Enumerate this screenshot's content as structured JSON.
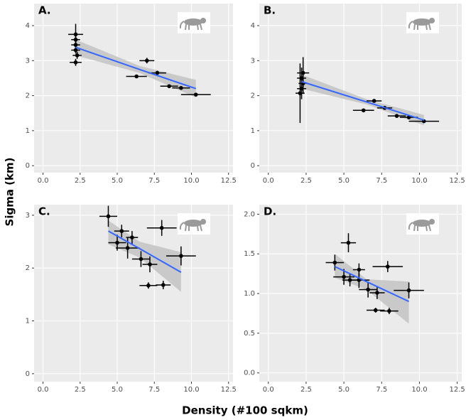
{
  "ylabel": "Sigma (km)",
  "xlabel": "Density (#100 sqkm)",
  "chart_data": [
    {
      "type": "scatter",
      "label": "A.",
      "x": [
        2.2,
        2.2,
        2.2,
        2.2,
        2.3,
        2.2,
        7.0,
        6.3,
        7.7,
        8.5,
        9.3,
        10.3
      ],
      "y": [
        3.75,
        3.6,
        3.45,
        3.3,
        3.15,
        2.95,
        3.0,
        2.55,
        2.65,
        2.27,
        2.22,
        2.03
      ],
      "xerr": [
        0.5,
        0.3,
        0.3,
        0.3,
        0.3,
        0.4,
        0.5,
        0.7,
        0.6,
        0.6,
        0.6,
        1.0
      ],
      "yerr": [
        0.3,
        0.15,
        0.1,
        0.1,
        0.1,
        0.1,
        0.08,
        0.05,
        0.06,
        0.04,
        0.04,
        0.05
      ],
      "fit": {
        "x": [
          2.2,
          6.5,
          10.3
        ],
        "y": [
          3.38,
          2.75,
          2.2
        ],
        "lower": [
          3.15,
          2.65,
          1.95
        ],
        "upper": [
          3.6,
          2.85,
          2.45
        ]
      },
      "xlim": [
        -0.6,
        12.8
      ],
      "ylim": [
        -0.2,
        4.63
      ],
      "xticks": [
        {
          "value": 0,
          "label": "0.0"
        },
        {
          "value": 2.5,
          "label": "2.5"
        },
        {
          "value": 5,
          "label": "5.0"
        },
        {
          "value": 7.5,
          "label": "7.5"
        },
        {
          "value": 10,
          "label": "10.0"
        },
        {
          "value": 12.5,
          "label": "12.5"
        }
      ],
      "yticks": [
        0,
        1,
        2,
        3,
        4
      ],
      "point_color": "#000000",
      "fit_color": "#3366ff",
      "band_color": "#bdbdbd",
      "grid": true
    },
    {
      "type": "scatter",
      "label": "B.",
      "x": [
        2.3,
        2.2,
        2.3,
        2.2,
        2.1,
        7.0,
        6.3,
        7.7,
        8.5,
        9.3,
        10.3
      ],
      "y": [
        2.65,
        2.5,
        2.35,
        2.2,
        2.07,
        1.85,
        1.58,
        1.65,
        1.42,
        1.38,
        1.27
      ],
      "xerr": [
        0.4,
        0.3,
        0.3,
        0.3,
        0.3,
        0.5,
        0.7,
        0.5,
        0.6,
        0.6,
        1.0
      ],
      "yerr": [
        0.45,
        0.3,
        0.3,
        0.3,
        0.85,
        0.05,
        0.04,
        0.04,
        0.03,
        0.03,
        0.03
      ],
      "fit": {
        "x": [
          2.2,
          6.5,
          10.3
        ],
        "y": [
          2.4,
          1.82,
          1.3
        ],
        "lower": [
          2.2,
          1.75,
          1.15
        ],
        "upper": [
          2.6,
          1.9,
          1.45
        ]
      },
      "xlim": [
        -0.6,
        12.8
      ],
      "ylim": [
        -0.2,
        4.63
      ],
      "xticks": [
        {
          "value": 0,
          "label": "0.0"
        },
        {
          "value": 2.5,
          "label": "2.5"
        },
        {
          "value": 5,
          "label": "5.0"
        },
        {
          "value": 7.5,
          "label": "7.5"
        },
        {
          "value": 10,
          "label": "10.0"
        },
        {
          "value": 12.5,
          "label": "12.5"
        }
      ],
      "yticks": [
        0,
        1,
        2,
        3,
        4
      ],
      "point_color": "#000000",
      "fit_color": "#3366ff",
      "band_color": "#bdbdbd",
      "grid": true
    },
    {
      "type": "scatter",
      "label": "C.",
      "x": [
        4.4,
        5.3,
        5.0,
        6.0,
        5.7,
        6.6,
        7.2,
        8.0,
        9.3,
        7.1,
        8.1
      ],
      "y": [
        2.98,
        2.7,
        2.48,
        2.58,
        2.38,
        2.17,
        2.07,
        2.76,
        2.23,
        1.67,
        1.68
      ],
      "xerr": [
        0.6,
        0.5,
        0.6,
        0.4,
        0.8,
        0.6,
        0.5,
        1.0,
        1.0,
        0.6,
        0.5
      ],
      "yerr": [
        0.2,
        0.12,
        0.15,
        0.12,
        0.2,
        0.15,
        0.15,
        0.15,
        0.18,
        0.06,
        0.08
      ],
      "fit": {
        "x": [
          4.4,
          6.5,
          9.3
        ],
        "y": [
          2.7,
          2.37,
          1.92
        ],
        "lower": [
          2.45,
          2.2,
          1.55
        ],
        "upper": [
          2.9,
          2.5,
          2.3
        ]
      },
      "xlim": [
        -0.6,
        12.8
      ],
      "ylim": [
        -0.15,
        3.2
      ],
      "xticks": [
        {
          "value": 0,
          "label": "0.0"
        },
        {
          "value": 2.5,
          "label": "2.5"
        },
        {
          "value": 5,
          "label": "5.0"
        },
        {
          "value": 7.5,
          "label": "7.5"
        },
        {
          "value": 10,
          "label": "10.0"
        },
        {
          "value": 12.5,
          "label": "12.5"
        }
      ],
      "yticks": [
        0,
        1,
        2,
        3
      ],
      "point_color": "#000000",
      "fit_color": "#3366ff",
      "band_color": "#bdbdbd",
      "grid": true
    },
    {
      "type": "scatter",
      "label": "D.",
      "x": [
        4.4,
        5.3,
        5.0,
        5.4,
        6.0,
        6.0,
        6.6,
        7.2,
        7.9,
        7.1,
        8.0,
        9.3
      ],
      "y": [
        1.39,
        1.64,
        1.21,
        1.17,
        1.3,
        1.17,
        1.05,
        1.01,
        1.34,
        0.79,
        0.78,
        1.04
      ],
      "xerr": [
        0.6,
        0.5,
        0.7,
        0.5,
        0.4,
        0.7,
        0.6,
        0.5,
        1.0,
        0.6,
        0.6,
        1.0
      ],
      "yerr": [
        0.1,
        0.12,
        0.1,
        0.08,
        0.08,
        0.1,
        0.1,
        0.08,
        0.07,
        0.03,
        0.04,
        0.1
      ],
      "fit": {
        "x": [
          4.4,
          6.5,
          9.3
        ],
        "y": [
          1.34,
          1.15,
          0.9
        ],
        "lower": [
          1.2,
          1.05,
          0.62
        ],
        "upper": [
          1.5,
          1.18,
          1.15
        ]
      },
      "xlim": [
        -0.6,
        12.8
      ],
      "ylim": [
        -0.11,
        2.12
      ],
      "xticks": [
        {
          "value": 0,
          "label": "0.0"
        },
        {
          "value": 2.5,
          "label": "2.5"
        },
        {
          "value": 5,
          "label": "5.0"
        },
        {
          "value": 7.5,
          "label": "7.5"
        },
        {
          "value": 10,
          "label": "10.0"
        },
        {
          "value": 12.5,
          "label": "12.5"
        }
      ],
      "yticks": [
        {
          "value": 0,
          "label": "0.0"
        },
        {
          "value": 0.5,
          "label": "0.5"
        },
        {
          "value": 1,
          "label": "1.0"
        },
        {
          "value": 1.5,
          "label": "1.5"
        },
        {
          "value": 2,
          "label": "2.0"
        }
      ],
      "point_color": "#000000",
      "fit_color": "#3366ff",
      "band_color": "#bdbdbd",
      "grid": true
    }
  ]
}
